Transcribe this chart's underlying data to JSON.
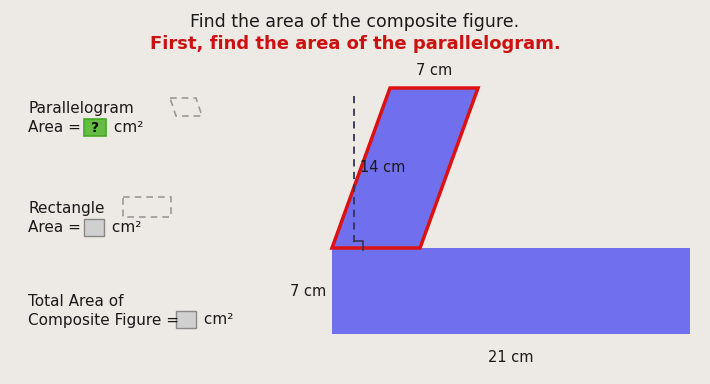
{
  "title_line1": "Find the area of the composite figure.",
  "title_line2": "First, find the area of the parallelogram.",
  "title_line1_color": "#1a1a1a",
  "title_line2_color": "#cc1111",
  "bg_color": "#ede9e4",
  "shape_fill": "#7070ee",
  "shape_outline": "#dd1111",
  "label_7cm_top": "7 cm",
  "label_14cm": "14 cm",
  "label_7cm_left": "7 cm",
  "label_21cm": "21 cm",
  "question_box_color": "#66bb44",
  "answer_box_color": "#d0d0d0",
  "icon_para_color": "#999999",
  "icon_rect_color": "#999999",
  "dashed_color": "#333355"
}
